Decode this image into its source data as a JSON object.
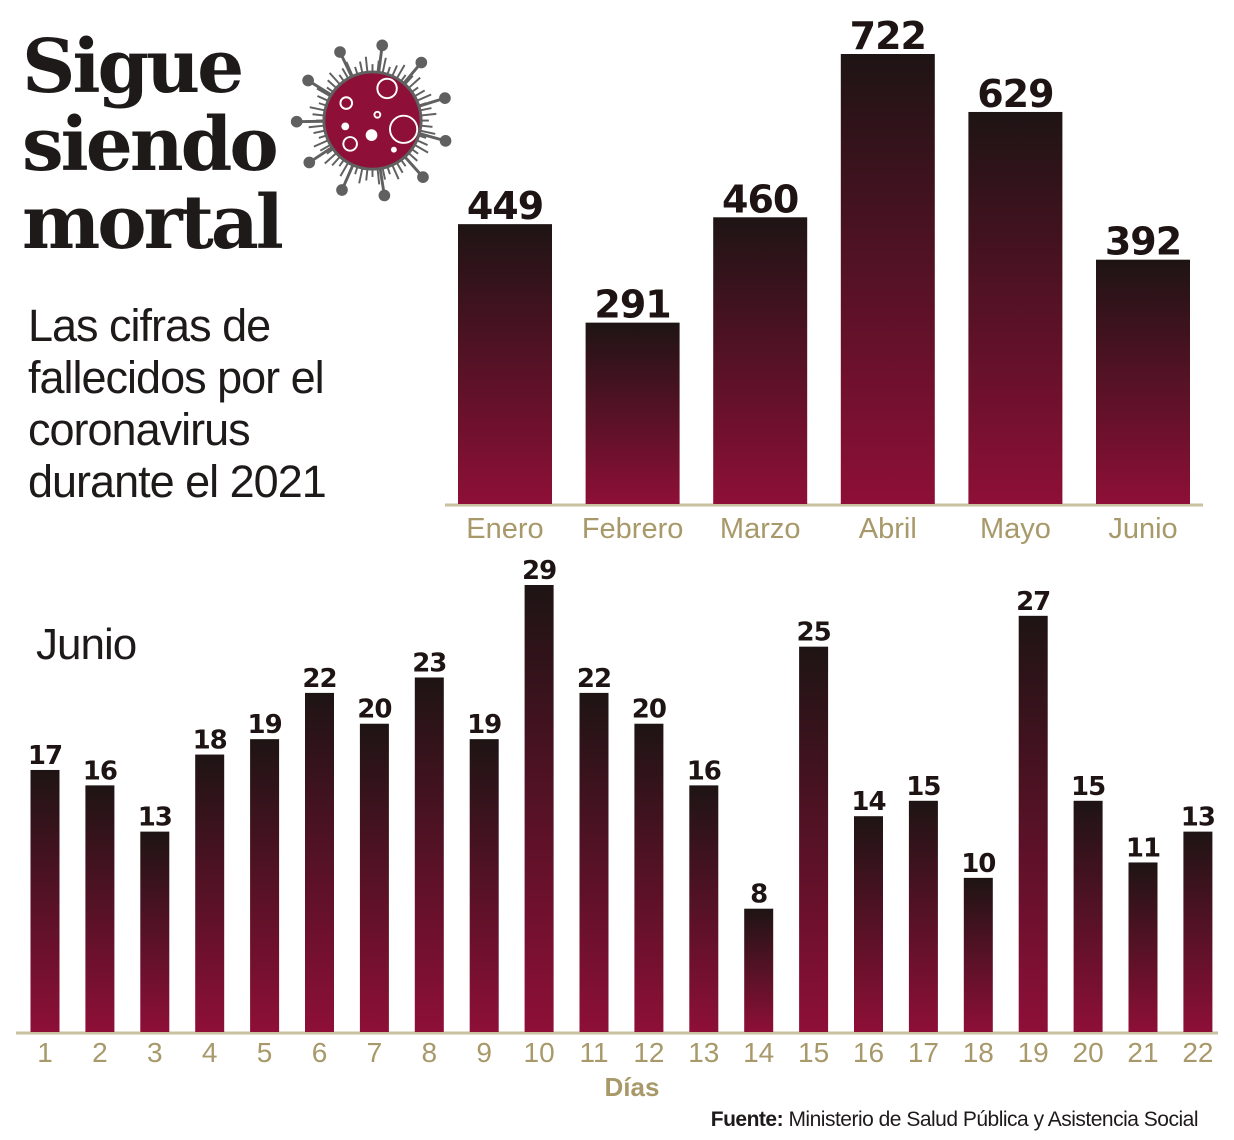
{
  "title_lines": [
    "Sigue",
    "siendo",
    "mortal"
  ],
  "subtitle_lines": [
    "Las cifras de",
    "fallecidos por el",
    "coronavirus",
    "durante el 2021"
  ],
  "source": {
    "label": "Fuente:",
    "text": "Ministerio de Salud Pública y Asistencia Social"
  },
  "colors": {
    "bar_top": "#1e1414",
    "bar_bottom": "#8e0f38",
    "axis": "#c9c19f",
    "tick_label": "#a8996a",
    "virus_body": "#8e0f38",
    "virus_spikes": "#606060"
  },
  "chart_data": [
    {
      "type": "bar",
      "title": "",
      "xlabel": "",
      "ylabel": "",
      "categories": [
        "Enero",
        "Febrero",
        "Marzo",
        "Abril",
        "Mayo",
        "Junio"
      ],
      "values": [
        449,
        291,
        460,
        722,
        629,
        392
      ],
      "ylim": [
        0,
        722
      ],
      "grid": false
    },
    {
      "type": "bar",
      "title": "Junio",
      "xlabel": "Días",
      "ylabel": "",
      "categories": [
        "1",
        "2",
        "3",
        "4",
        "5",
        "6",
        "7",
        "8",
        "9",
        "10",
        "11",
        "12",
        "13",
        "14",
        "15",
        "16",
        "17",
        "18",
        "19",
        "20",
        "21",
        "22"
      ],
      "values": [
        17,
        16,
        13,
        18,
        19,
        22,
        20,
        23,
        19,
        29,
        22,
        20,
        16,
        8,
        25,
        14,
        15,
        10,
        27,
        15,
        11,
        13
      ],
      "ylim": [
        0,
        29
      ],
      "grid": false
    }
  ]
}
